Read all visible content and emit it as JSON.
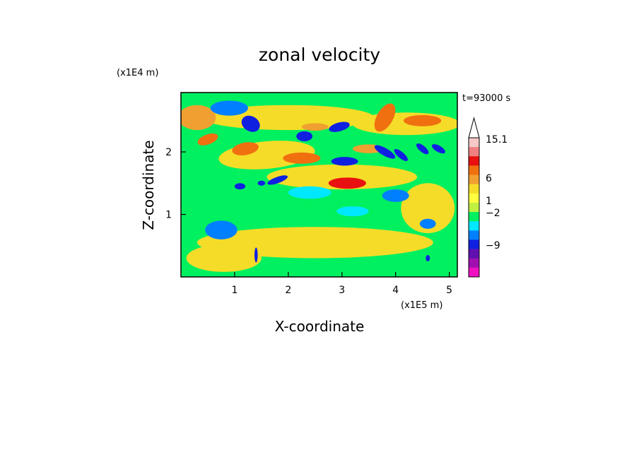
{
  "chart_data": {
    "type": "heatmap",
    "title": "zonal velocity",
    "xlabel": "X-coordinate",
    "ylabel": "Z-coordinate",
    "x_unit": "(x1E5 m)",
    "y_unit": "(x1E4 m)",
    "annotation": "t=93000 s",
    "xlim": [
      0,
      5.15
    ],
    "ylim": [
      0,
      2.95
    ],
    "x_ticks": [
      "1",
      "2",
      "3",
      "4",
      "5"
    ],
    "y_ticks": [
      "1",
      "2"
    ],
    "colorbar": {
      "labels": [
        "15.1",
        "6",
        "1",
        "−2",
        "−9"
      ],
      "label_values": [
        15.1,
        6,
        1,
        -2,
        -9
      ],
      "levels_top_to_bottom": [
        {
          "color": "#f6c8c8"
        },
        {
          "color": "#f08080"
        },
        {
          "color": "#e81010"
        },
        {
          "color": "#f07010"
        },
        {
          "color": "#f0a030"
        },
        {
          "color": "#f5dc28"
        },
        {
          "color": "#ffff40"
        },
        {
          "color": "#c0f040"
        },
        {
          "color": "#00f060"
        },
        {
          "color": "#00e8ff"
        },
        {
          "color": "#0080ff"
        },
        {
          "color": "#1020e0"
        },
        {
          "color": "#6010b0"
        },
        {
          "color": "#a010b0"
        },
        {
          "color": "#f010c0"
        }
      ]
    },
    "features": [
      {
        "x": 1.6,
        "y": 1.95,
        "rx": 0.9,
        "ry": 0.22,
        "value": 2,
        "angle": -5
      },
      {
        "x": 4.2,
        "y": 2.45,
        "rx": 1.0,
        "ry": 0.18,
        "value": 2,
        "angle": 0
      },
      {
        "x": 3.0,
        "y": 1.6,
        "rx": 1.4,
        "ry": 0.2,
        "value": 2,
        "angle": 0
      },
      {
        "x": 2.5,
        "y": 0.55,
        "rx": 2.2,
        "ry": 0.25,
        "value": 1.5,
        "angle": 0
      },
      {
        "x": 0.8,
        "y": 0.3,
        "rx": 0.7,
        "ry": 0.22,
        "value": 2,
        "angle": 0
      },
      {
        "x": 2.0,
        "y": 2.55,
        "rx": 1.6,
        "ry": 0.2,
        "value": 1.5,
        "angle": 0
      },
      {
        "x": 4.6,
        "y": 1.1,
        "rx": 0.5,
        "ry": 0.4,
        "value": 1.5,
        "angle": 0
      },
      {
        "x": 0.3,
        "y": 2.55,
        "rx": 0.35,
        "ry": 0.2,
        "value": 3,
        "angle": 0
      },
      {
        "x": 1.2,
        "y": 2.05,
        "rx": 0.25,
        "ry": 0.1,
        "value": 5,
        "angle": -10
      },
      {
        "x": 2.25,
        "y": 1.9,
        "rx": 0.35,
        "ry": 0.09,
        "value": 6,
        "angle": 0
      },
      {
        "x": 3.1,
        "y": 1.5,
        "rx": 0.35,
        "ry": 0.09,
        "value": 7,
        "angle": 0
      },
      {
        "x": 3.8,
        "y": 2.55,
        "rx": 0.15,
        "ry": 0.25,
        "value": 5,
        "angle": 30
      },
      {
        "x": 4.5,
        "y": 2.5,
        "rx": 0.35,
        "ry": 0.09,
        "value": 5,
        "angle": 0
      },
      {
        "x": 0.5,
        "y": 2.2,
        "rx": 0.2,
        "ry": 0.08,
        "value": 5,
        "angle": -20
      },
      {
        "x": 2.5,
        "y": 2.4,
        "rx": 0.25,
        "ry": 0.06,
        "value": 4,
        "angle": 0
      },
      {
        "x": 3.5,
        "y": 2.05,
        "rx": 0.3,
        "ry": 0.07,
        "value": 4,
        "angle": 0
      },
      {
        "x": 1.3,
        "y": 2.45,
        "rx": 0.18,
        "ry": 0.12,
        "value": -8,
        "angle": 30
      },
      {
        "x": 2.3,
        "y": 2.25,
        "rx": 0.15,
        "ry": 0.08,
        "value": -8,
        "angle": 0
      },
      {
        "x": 2.95,
        "y": 2.4,
        "rx": 0.2,
        "ry": 0.07,
        "value": -8,
        "angle": -15
      },
      {
        "x": 3.05,
        "y": 1.85,
        "rx": 0.25,
        "ry": 0.07,
        "value": -8,
        "angle": 0
      },
      {
        "x": 3.8,
        "y": 2.0,
        "rx": 0.22,
        "ry": 0.06,
        "value": -8,
        "angle": 30
      },
      {
        "x": 4.1,
        "y": 1.95,
        "rx": 0.16,
        "ry": 0.05,
        "value": -8,
        "angle": 40
      },
      {
        "x": 4.5,
        "y": 2.05,
        "rx": 0.14,
        "ry": 0.05,
        "value": -8,
        "angle": 40
      },
      {
        "x": 4.8,
        "y": 2.05,
        "rx": 0.14,
        "ry": 0.05,
        "value": -8,
        "angle": 30
      },
      {
        "x": 1.8,
        "y": 1.55,
        "rx": 0.2,
        "ry": 0.05,
        "value": -7,
        "angle": -20
      },
      {
        "x": 1.1,
        "y": 1.45,
        "rx": 0.1,
        "ry": 0.05,
        "value": -6,
        "angle": 0
      },
      {
        "x": 1.5,
        "y": 1.5,
        "rx": 0.07,
        "ry": 0.04,
        "value": -6,
        "angle": 0
      },
      {
        "x": 0.9,
        "y": 2.7,
        "rx": 0.35,
        "ry": 0.12,
        "value": -3,
        "angle": 0
      },
      {
        "x": 2.4,
        "y": 1.35,
        "rx": 0.4,
        "ry": 0.1,
        "value": -2.5,
        "angle": 0
      },
      {
        "x": 0.75,
        "y": 0.75,
        "rx": 0.3,
        "ry": 0.15,
        "value": -3,
        "angle": 0
      },
      {
        "x": 3.2,
        "y": 1.05,
        "rx": 0.3,
        "ry": 0.08,
        "value": -2.5,
        "angle": 0
      },
      {
        "x": 4.0,
        "y": 1.3,
        "rx": 0.25,
        "ry": 0.1,
        "value": -3,
        "angle": 0
      },
      {
        "x": 4.6,
        "y": 0.85,
        "rx": 0.15,
        "ry": 0.08,
        "value": -3,
        "angle": 0
      },
      {
        "x": 1.4,
        "y": 0.35,
        "rx": 0.03,
        "ry": 0.12,
        "value": -8,
        "angle": 0
      },
      {
        "x": 4.6,
        "y": 0.3,
        "rx": 0.04,
        "ry": 0.05,
        "value": -8,
        "angle": 0
      }
    ]
  }
}
